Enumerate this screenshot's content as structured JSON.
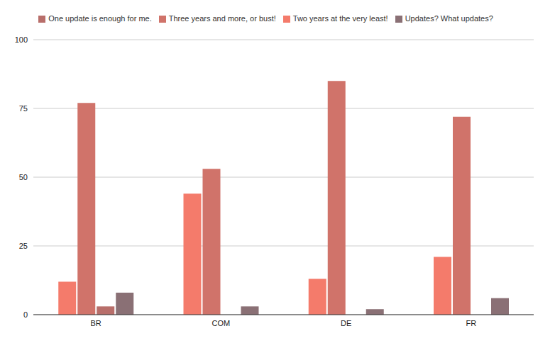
{
  "chart_data": {
    "type": "bar",
    "categories": [
      "BR",
      "COM",
      "DE",
      "FR"
    ],
    "series": [
      {
        "name": "Two years at the very least!",
        "color": "#f47b6b",
        "values": [
          12,
          44,
          13,
          21
        ]
      },
      {
        "name": "Three years and more, or bust!",
        "color": "#d0736a",
        "values": [
          77,
          53,
          85,
          72
        ]
      },
      {
        "name": "One update is enough for me.",
        "color": "#b86e6a",
        "values": [
          3,
          0,
          0,
          0
        ]
      },
      {
        "name": "Updates? What updates?",
        "color": "#8a7075",
        "values": [
          8,
          3,
          2,
          6
        ]
      }
    ],
    "ylim": [
      0,
      100
    ],
    "yticks": [
      0,
      25,
      50,
      75,
      100
    ],
    "grid": true,
    "legend": "top"
  }
}
